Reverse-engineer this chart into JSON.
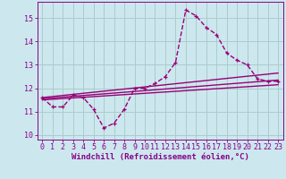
{
  "xlabel": "Windchill (Refroidissement éolien,°C)",
  "background_color": "#cce8ee",
  "grid_color": "#aacccc",
  "line_color": "#990077",
  "xlim": [
    -0.5,
    23.5
  ],
  "ylim": [
    9.8,
    15.7
  ],
  "yticks": [
    10,
    11,
    12,
    13,
    14,
    15
  ],
  "xticks": [
    0,
    1,
    2,
    3,
    4,
    5,
    6,
    7,
    8,
    9,
    10,
    11,
    12,
    13,
    14,
    15,
    16,
    17,
    18,
    19,
    20,
    21,
    22,
    23
  ],
  "main_x": [
    0,
    1,
    2,
    3,
    4,
    5,
    6,
    7,
    8,
    9,
    10,
    11,
    12,
    13,
    14,
    15,
    16,
    17,
    18,
    19,
    20,
    21,
    22,
    23
  ],
  "main_y": [
    11.6,
    11.2,
    11.2,
    11.7,
    11.6,
    11.1,
    10.3,
    10.5,
    11.1,
    12.0,
    12.0,
    12.2,
    12.5,
    13.1,
    15.35,
    15.1,
    14.6,
    14.3,
    13.5,
    13.2,
    13.0,
    12.4,
    12.3,
    12.3
  ],
  "line1_x": [
    0,
    23
  ],
  "line1_y": [
    11.5,
    12.15
  ],
  "line2_x": [
    0,
    23
  ],
  "line2_y": [
    11.55,
    12.35
  ],
  "line3_x": [
    0,
    23
  ],
  "line3_y": [
    11.6,
    12.65
  ],
  "marker_size": 3.5,
  "line_width": 1.0,
  "font_color": "#880088",
  "tick_fontsize": 6.0,
  "xlabel_fontsize": 6.5
}
